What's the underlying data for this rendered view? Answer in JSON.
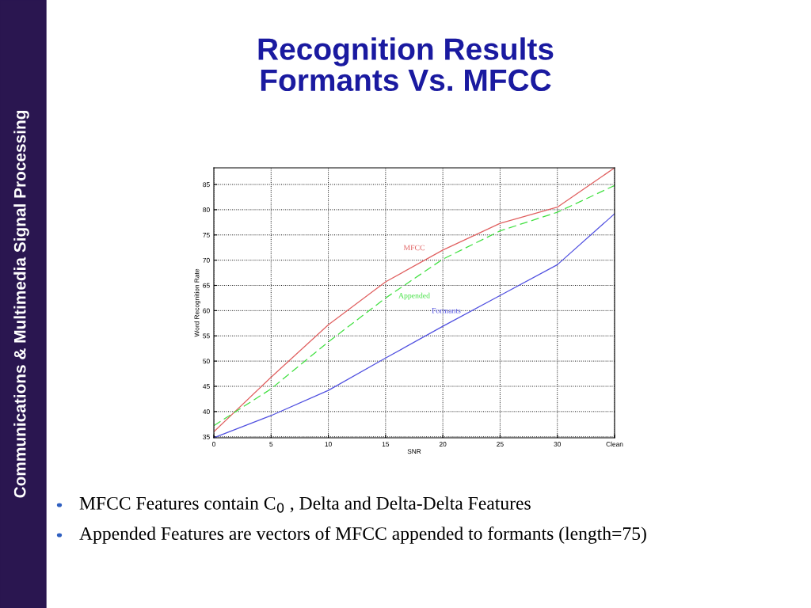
{
  "chart_data": {
    "type": "line",
    "title": "Recognition Results\nFormants Vs. MFCC",
    "xlabel": "SNR",
    "ylabel": "Word Recognition Rate",
    "x": [
      0,
      5,
      10,
      15,
      20,
      25,
      30,
      35
    ],
    "series": [
      {
        "name": "MFCC",
        "color": "#e06060",
        "line_style": "solid",
        "values": [
          36.0,
          46.8,
          57.2,
          65.7,
          72.0,
          77.3,
          80.5,
          88.3
        ]
      },
      {
        "name": "Appended",
        "color": "#40e040",
        "line_style": "dashed",
        "values": [
          37.2,
          44.5,
          53.8,
          62.5,
          70.2,
          75.8,
          79.5,
          84.8
        ]
      },
      {
        "name": "Formants",
        "color": "#5050e0",
        "line_style": "solid",
        "values": [
          34.8,
          39.2,
          44.2,
          50.6,
          56.9,
          63.0,
          69.1,
          79.2
        ]
      }
    ],
    "xlim": [
      0,
      35
    ],
    "xticks": [
      0,
      5,
      10,
      15,
      20,
      25,
      30,
      {
        "value": 35,
        "label": "Clean"
      }
    ],
    "ylim": [
      34.8,
      88.3
    ],
    "yticks": [
      35,
      40,
      45,
      50,
      55,
      60,
      65,
      70,
      75,
      80,
      85
    ],
    "grid": true,
    "legend": false,
    "marker": "none",
    "annotations": [
      "MFCC Features contain C$_{0}$ , Delta and Delta-Delta Features",
      "Appended Features are vectors of MFCC appended to formants (length=75)",
      "Communications & Multimedia Signal Processing"
    ]
  }
}
